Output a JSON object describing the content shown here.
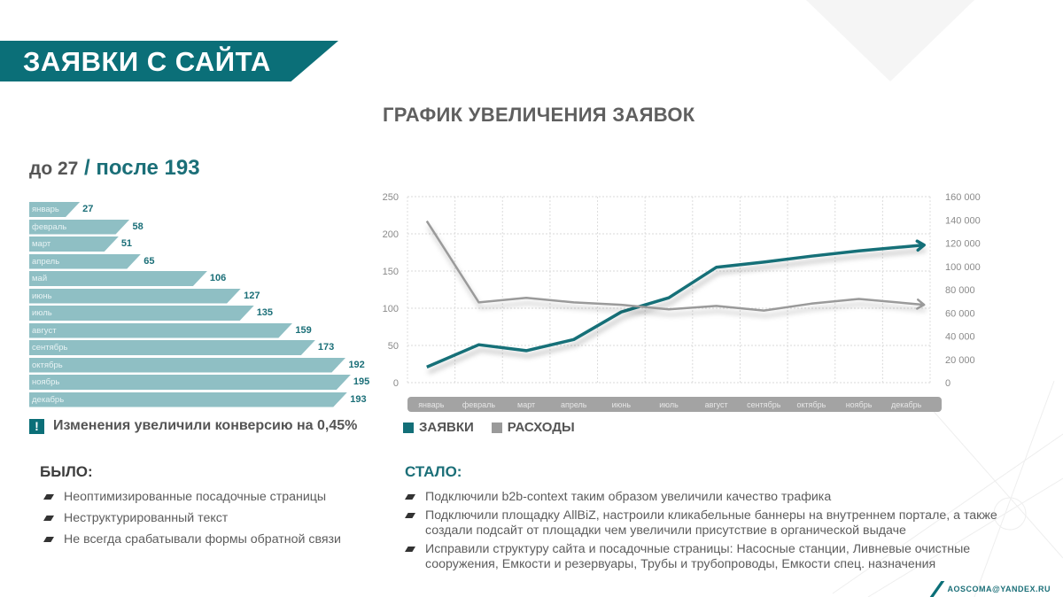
{
  "header": {
    "title": "ЗАЯВКИ С САЙТА"
  },
  "summary": {
    "before_label": "до 27",
    "separator": "/",
    "after_label": "после 193"
  },
  "bar_list": [
    {
      "month": "январь",
      "value": 27
    },
    {
      "month": "февраль",
      "value": 58
    },
    {
      "month": "март",
      "value": 51
    },
    {
      "month": "апрель",
      "value": 65
    },
    {
      "month": "май",
      "value": 106
    },
    {
      "month": "июнь",
      "value": 127
    },
    {
      "month": "июль",
      "value": 135
    },
    {
      "month": "август",
      "value": 159
    },
    {
      "month": "сентябрь",
      "value": 173
    },
    {
      "month": "октябрь",
      "value": 192
    },
    {
      "month": "ноябрь",
      "value": 195
    },
    {
      "month": "декабрь",
      "value": 193
    }
  ],
  "note": {
    "icon": "exclamation-icon",
    "icon_glyph": "!",
    "text": "Изменения увеличили конверсию на 0,45%"
  },
  "chart_title": "ГРАФИК УВЕЛИЧЕНИЯ ЗАЯВОК",
  "legend": [
    {
      "label": "ЗАЯВКИ",
      "color": "#136f78"
    },
    {
      "label": "РАСХОДЫ",
      "color": "#9a9a9a"
    }
  ],
  "was": {
    "title": "БЫЛО:",
    "items": [
      "Неоптимизированные посадочные страницы",
      "Неструктурированный текст",
      "Не всегда срабатывали формы обратной связи"
    ]
  },
  "now": {
    "title": "СТАЛО:",
    "items": [
      "Подключили b2b-context таким образом увеличили качество трафика",
      "Подключили площадку AllBiZ, настроили кликабельные баннеры на внутреннем портале, а также создали подсайт от площадки чем увеличили присутствие в органической выдаче",
      "Исправили структуру сайта и посадочные страницы: Насосные станции, Ливневые очистные сооружения, Емкости и резервуары, Трубы и трубопроводы, Емкости спец. назначения"
    ]
  },
  "footer": {
    "email": "AOSCOMA@YANDEX.RU"
  },
  "colors": {
    "accent": "#0b6f78",
    "bar": "#8fbfc4",
    "gray_line": "#9a9a9a"
  },
  "chart_data": [
    {
      "type": "bar",
      "title": "до 27 / после 193",
      "orientation": "horizontal",
      "categories": [
        "январь",
        "февраль",
        "март",
        "апрель",
        "май",
        "июнь",
        "июль",
        "август",
        "сентябрь",
        "октябрь",
        "ноябрь",
        "декабрь"
      ],
      "values": [
        27,
        58,
        51,
        65,
        106,
        127,
        135,
        159,
        173,
        192,
        195,
        193
      ]
    },
    {
      "type": "line",
      "title": "ГРАФИК УВЕЛИЧЕНИЯ ЗАЯВОК",
      "x": [
        "январь",
        "февраль",
        "март",
        "апрель",
        "июнь",
        "июль",
        "август",
        "сентябрь",
        "октябрь",
        "ноябрь",
        "декабрь"
      ],
      "y_left": {
        "ticks": [
          0,
          50,
          100,
          150,
          200,
          250
        ],
        "ylim": [
          0,
          250
        ]
      },
      "y_right": {
        "ticks": [
          "0",
          "20 000",
          "40 000",
          "60 000",
          "80 000",
          "100 000",
          "120 000",
          "140 000",
          "160 000"
        ],
        "ylim": [
          0,
          160000
        ]
      },
      "grid": true,
      "legend_position": "bottom-left",
      "series": [
        {
          "name": "ЗАЯВКИ",
          "axis": "left",
          "color": "#136f78",
          "values": [
            21,
            51,
            43,
            58,
            95,
            114,
            155,
            162,
            170,
            177,
            185
          ]
        },
        {
          "name": "РАСХОДЫ",
          "axis": "right",
          "color": "#9a9a9a",
          "values": [
            139000,
            69000,
            73000,
            69000,
            67000,
            63000,
            66000,
            62000,
            68000,
            72000,
            67000
          ]
        }
      ]
    }
  ]
}
